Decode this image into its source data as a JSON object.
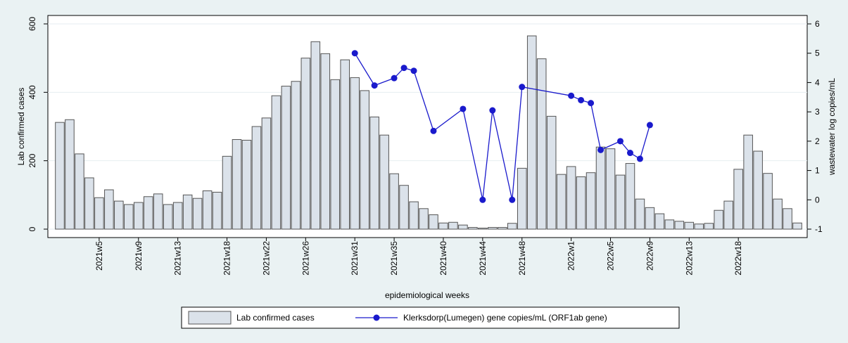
{
  "chart_data": {
    "type": "combo",
    "x_label": "epidemiological weeks",
    "y_label": "Lab confirmed cases",
    "y2_label": "wastewater log copies/mL",
    "categories": [
      null,
      null,
      null,
      null,
      "2021w5",
      null,
      null,
      null,
      "2021w9",
      null,
      null,
      null,
      "2021w13",
      null,
      null,
      null,
      null,
      "2021w18",
      null,
      null,
      null,
      "2021w22",
      null,
      null,
      null,
      "2021w26",
      null,
      null,
      null,
      null,
      "2021w31",
      null,
      null,
      null,
      "2021w35",
      null,
      null,
      null,
      null,
      "2021w40",
      null,
      null,
      null,
      "2021w44",
      null,
      null,
      null,
      "2021w48",
      null,
      null,
      null,
      null,
      "2022w1",
      null,
      null,
      null,
      "2022w5",
      null,
      null,
      null,
      "2022w9",
      null,
      null,
      null,
      "2022w13",
      null,
      null,
      null,
      null,
      "2022w18",
      null,
      null,
      null,
      null,
      null,
      null
    ],
    "series": [
      {
        "name": "Lab confirmed cases",
        "type": "bar",
        "color": "#dbe2ea",
        "values": [
          312,
          320,
          220,
          150,
          92,
          115,
          82,
          72,
          78,
          95,
          103,
          72,
          78,
          100,
          90,
          112,
          108,
          213,
          262,
          260,
          300,
          325,
          390,
          418,
          432,
          500,
          548,
          513,
          437,
          495,
          443,
          405,
          328,
          275,
          162,
          128,
          80,
          60,
          42,
          18,
          20,
          12,
          5,
          3,
          5,
          5,
          17,
          178,
          565,
          498,
          330,
          160,
          183,
          153,
          165,
          240,
          235,
          158,
          192,
          88,
          63,
          45,
          27,
          23,
          20,
          15,
          17,
          55,
          82,
          175,
          275,
          228,
          163,
          88,
          60,
          18
        ]
      },
      {
        "name": "Klerksdorp(Lumegen) gene copies/mL (ORF1ab gene)",
        "type": "line",
        "axis": "y2",
        "color": "#1a1acc",
        "values": [
          null,
          null,
          null,
          null,
          null,
          null,
          null,
          null,
          null,
          null,
          null,
          null,
          null,
          null,
          null,
          null,
          null,
          null,
          null,
          null,
          null,
          null,
          null,
          null,
          null,
          null,
          null,
          null,
          null,
          null,
          5.0,
          null,
          3.9,
          null,
          4.15,
          4.5,
          4.4,
          null,
          2.35,
          null,
          null,
          3.1,
          null,
          0,
          3.05,
          null,
          0,
          3.85,
          null,
          null,
          null,
          null,
          3.55,
          3.4,
          3.3,
          1.7,
          null,
          2.0,
          1.6,
          1.4,
          2.55,
          null,
          null,
          null,
          null,
          null,
          null,
          null,
          null,
          null,
          null,
          null,
          null,
          null,
          null,
          null
        ]
      }
    ],
    "ylim": [
      0,
      600
    ],
    "yticks": [
      0,
      200,
      400,
      600
    ],
    "y2lim": [
      -1,
      6
    ],
    "y2ticks": [
      -1,
      0,
      1,
      2,
      3,
      4,
      5,
      6
    ],
    "legend": "bottom"
  }
}
